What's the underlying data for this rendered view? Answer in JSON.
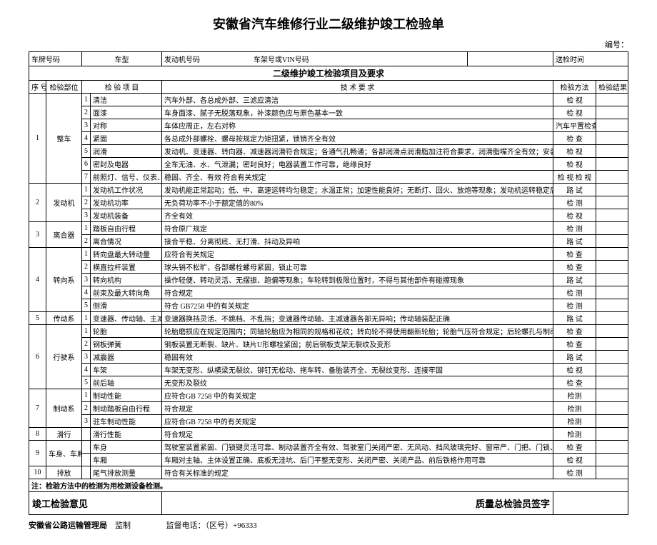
{
  "title": "安徽省汽车维修行业二级维护竣工检验单",
  "serial_label": "编号：",
  "head": {
    "plate_label": "车牌号码",
    "model_label": "车型",
    "engine_label": "发动机号码",
    "vin_label": "车架号或VIN号码",
    "time_label": "送检时间"
  },
  "section_title": "二级维护竣工检验项目及要求",
  "cols": {
    "seq": "序 号",
    "part": "检验部位",
    "item": "检 验 项 目",
    "req": "技 术 要 求",
    "method": "检验方法",
    "result": "检验结果"
  },
  "groups": [
    {
      "seq": "1",
      "part": "整车",
      "rows": [
        {
          "n": "1",
          "item": "清洁",
          "req": "汽车外部、各总成外部、三滤应清洁",
          "method": "检 视"
        },
        {
          "n": "2",
          "item": "面漆",
          "req": "车身面漆、腻子无脱落现象，补漆颜色应与原色基本一致",
          "method": "检 视"
        },
        {
          "n": "3",
          "item": "对称",
          "req": "车体应周正，左右对称",
          "method": "汽车平置检查"
        },
        {
          "n": "4",
          "item": "紧固",
          "req": "各总成外部螺栓、螺母按规定力矩扭紧，锁销齐全有效",
          "method": "检 查"
        },
        {
          "n": "5",
          "item": "润滑",
          "req": "发动机、变速器、转向器、减速器润滑符合规定；各通气孔畅通；各部润滑点润滑脂加注符合要求，润滑脂嘴齐全有效；安装位置正确",
          "method": "检 视"
        },
        {
          "n": "6",
          "item": "密封及电器",
          "req": "全车无油、水、气泄漏；密封良好；电器装置工作可靠，绝缘良好",
          "method": "检 视"
        },
        {
          "n": "7",
          "item": "前照灯、信号、仪表、刮水器、后视镜等装置",
          "req": "稳固、齐全、有效\n符合有关规定",
          "method": "检 视\n检 视"
        }
      ]
    },
    {
      "seq": "2",
      "part": "发动机",
      "rows": [
        {
          "n": "1",
          "item": "发动机工作状况",
          "req": "发动机能正常起动；低、中、高速运转均匀稳定；水温正常；加速性能良好；无断灯、回火、放炮等现象；发动机运转稳定后应无异响",
          "method": "路 试"
        },
        {
          "n": "2",
          "item": "发动机功率",
          "req": "无负荷功率不小于额定值的80%",
          "method": "检 测"
        },
        {
          "n": "3",
          "item": "发动机装备",
          "req": "齐全有效",
          "method": "检 视"
        }
      ]
    },
    {
      "seq": "3",
      "part": "离合器",
      "rows": [
        {
          "n": "1",
          "item": "踏板自由行程",
          "req": "符合原厂规定",
          "method": "检 测"
        },
        {
          "n": "2",
          "item": "离合情况",
          "req": "接合平稳、分离彻底、无打滑、抖动及异响",
          "method": "路 试"
        }
      ]
    },
    {
      "seq": "4",
      "part": "转向系",
      "rows": [
        {
          "n": "1",
          "item": "转向盘最大转动量",
          "req": "应符合有关规定",
          "method": "检 查"
        },
        {
          "n": "2",
          "item": "横直拉杆装置",
          "req": "球头销不松旷，各部螺栓螺母紧固，锁止可靠",
          "method": "检 查"
        },
        {
          "n": "3",
          "item": "转向机构",
          "req": "操作轻便、转动灵活、无摆振、跑偏等现象；车轮转到极限位置时，不得与其他部件有碰擦现象",
          "method": "路 试"
        },
        {
          "n": "4",
          "item": "前束及最大转向角",
          "req": "符合规定",
          "method": "检 测"
        },
        {
          "n": "5",
          "item": "侧滑",
          "req": "符合 GB7258 中的有关规定",
          "method": "检 测"
        }
      ]
    },
    {
      "seq": "5",
      "part": "传动系",
      "rows": [
        {
          "n": "1",
          "item": "变速器、传动轴、主减速器",
          "req": "变速器换挡灵活、不跳档、不乱挡；变速器传动轴、主减速器各部无异响；传动轴装配正确",
          "method": "路 试"
        }
      ]
    },
    {
      "seq": "6",
      "part": "行驶系",
      "rows": [
        {
          "n": "1",
          "item": "轮胎",
          "req": "轮胎磨损应在规定范围内；同轴轮胎应为相同的规格和花纹；转向轮不得使用翻新轮胎；轮胎气压符合规定；后轮螺孔与制动鼓观察孔对齐",
          "method": "检 查"
        },
        {
          "n": "2",
          "item": "钢板弹簧",
          "req": "钢板装置无断裂、缺片、缺片U形螺栓紧固；前后钢板支架无裂纹及变形",
          "method": "检 查"
        },
        {
          "n": "3",
          "item": "减震器",
          "req": "稳固有效",
          "method": "路 试"
        },
        {
          "n": "4",
          "item": "车架",
          "req": "车架无变形、纵横梁无裂纹、铆钉无松动、拖车转、备胎装齐全、无裂纹变形、连接牢固",
          "method": "检 视"
        },
        {
          "n": "5",
          "item": "前后轴",
          "req": "无变形及裂纹",
          "method": "检 查"
        }
      ]
    },
    {
      "seq": "7",
      "part": "制动系",
      "rows": [
        {
          "n": "1",
          "item": "制动性能",
          "req": "应符合GB 7258 中的有关规定",
          "method": "检测"
        },
        {
          "n": "2",
          "item": "制动踏板自由行程",
          "req": "符合规定",
          "method": "检测"
        },
        {
          "n": "3",
          "item": "驻车制动性能",
          "req": "应符合GB 7258 中的有关规定",
          "method": "检测"
        }
      ]
    },
    {
      "seq": "8",
      "part": "滑行",
      "rows": [
        {
          "n": "",
          "item": "滑行性能",
          "req": "符合规定",
          "method": "检测"
        }
      ]
    },
    {
      "seq": "9",
      "part": "车身、车厢",
      "rows": [
        {
          "n": "",
          "item": "车身",
          "req": "驾驶室装置紧固、门锁键灵活可靠、制动装置齐全有效、驾驶室门关闭严密、无风动、挡风玻璃完好、窗帘严、门把、门锁、玻璃升降器齐全有效、发动机罩抑有效、同风装置有效、驾驶座椅弹性良好",
          "method": "检 查"
        },
        {
          "n": "",
          "item": "车厢",
          "req": "车厢对主轴、主体设置正确、底板无洼坑、后门平整无变形、关闭严密、关闭产品、前后铁格作用可靠",
          "method": "检 视"
        }
      ]
    },
    {
      "seq": "10",
      "part": "排放",
      "rows": [
        {
          "n": "",
          "item": "尾气排放测量",
          "req": "符合有关标准的规定",
          "method": "检 测"
        }
      ]
    }
  ],
  "note": "注：检验方法中的检测为用检测设备检测。",
  "opinion_label": "竣工检验意见",
  "sign_label": "质量总检验员签字",
  "footer_org": "安徽省公路运输管理局",
  "footer_supervise": "监制",
  "footer_phone": "监督电话：（区号）+96333"
}
